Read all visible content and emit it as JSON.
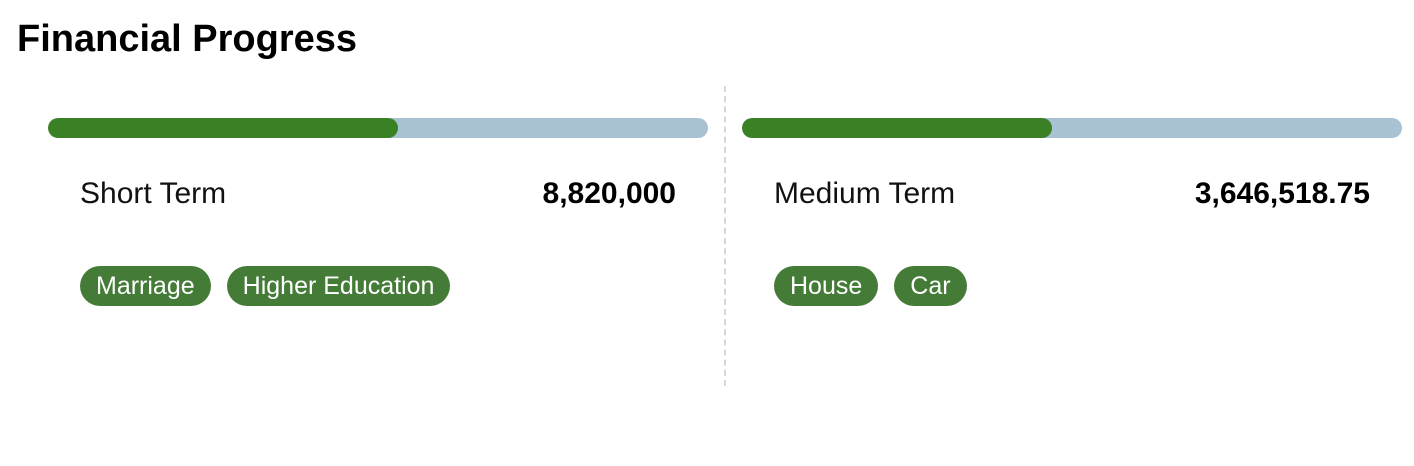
{
  "page": {
    "title": "Financial Progress"
  },
  "colors": {
    "progress_fill": "#3a8125",
    "progress_track": "#a9c2d3",
    "tag_background": "#447c37",
    "divider": "#d6d6d6"
  },
  "goals": [
    {
      "label": "Short Term",
      "amount": "8,820,000",
      "progress_percent": 53,
      "tags": [
        "Marriage",
        "Higher Education"
      ]
    },
    {
      "label": "Medium Term",
      "amount": "3,646,518.75",
      "progress_percent": 47,
      "tags": [
        "House",
        "Car"
      ]
    }
  ]
}
